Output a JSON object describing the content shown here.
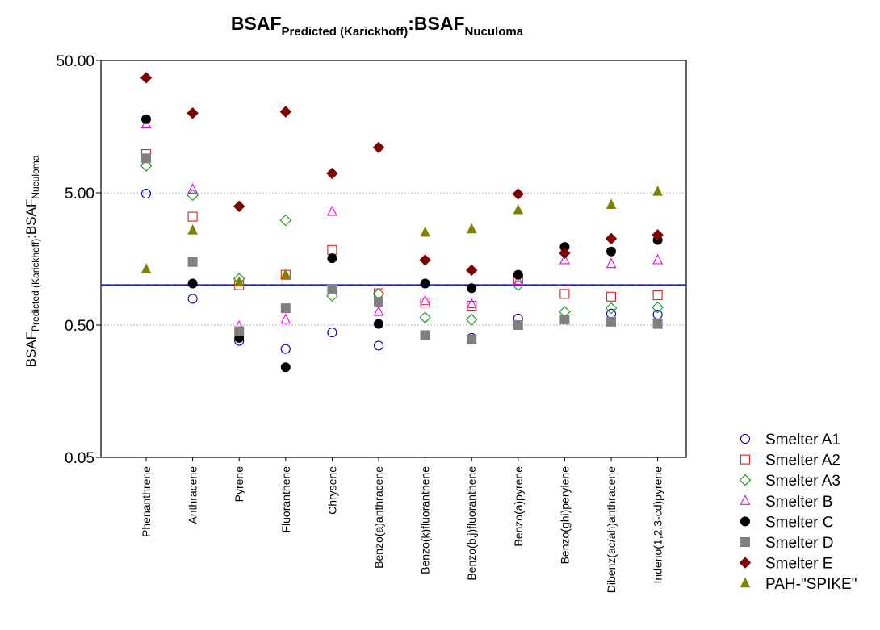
{
  "chart_data": {
    "type": "scatter",
    "title": {
      "main1": "BSAF",
      "sub1": "Predicted (Karickhoff)",
      "colon": ":",
      "main2": "BSAF",
      "sub2": "Nuculoma"
    },
    "ylabel": {
      "main1": "BSAF",
      "sub1": "Predicted (Karickhoff)",
      "colon": ":",
      "main2": "BSAF",
      "sub2": "Nuculoma"
    },
    "yscale": "log",
    "ylim": [
      0.05,
      50
    ],
    "yticks": [
      {
        "value": 50,
        "label": "50.00"
      },
      {
        "value": 5,
        "label": "5.00"
      },
      {
        "value": 0.5,
        "label": "0.50"
      },
      {
        "value": 0.05,
        "label": "0.05"
      }
    ],
    "reference_line": 1.0,
    "grid": "horizontal dotted at 5.00 and 0.50",
    "legend_position": "bottom-right, outside plot",
    "categories": [
      "Phenanthrene",
      "Anthracene",
      "Pyrene",
      "Fluoranthene",
      "Chrysene",
      "Benzo(a)anthracene",
      "Benzo(k)fluoranthene",
      "Benzo(b,j)fluoranthene",
      "Benzo(a)pyrene",
      "Benzo(ghi)perylene",
      "Dibenz(ac/ah)anthracene",
      "Indeno(1,2,3-cd)pyrene"
    ],
    "series": [
      {
        "name": "Smelter A1",
        "marker": "circle-open",
        "color": "#0000cc",
        "values": [
          4.93,
          0.79,
          0.38,
          0.33,
          0.44,
          0.35,
          0.42,
          0.4,
          0.56,
          null,
          0.61,
          0.6
        ]
      },
      {
        "name": "Smelter A2",
        "marker": "square-open",
        "color": "#e02020",
        "values": [
          9.8,
          3.3,
          1.0,
          1.2,
          1.85,
          0.87,
          0.74,
          0.7,
          1.1,
          0.86,
          0.82,
          0.84
        ]
      },
      {
        "name": "Smelter A3",
        "marker": "diamond-open",
        "color": "#119911",
        "values": [
          8.0,
          4.8,
          1.12,
          3.1,
          0.83,
          0.86,
          0.57,
          0.55,
          1.0,
          0.63,
          0.67,
          0.68
        ]
      },
      {
        "name": "Smelter B",
        "marker": "triangle-open",
        "color": "#ee00ee",
        "values": [
          16.5,
          5.3,
          0.49,
          0.55,
          3.6,
          0.63,
          0.76,
          0.72,
          1.08,
          1.55,
          1.45,
          1.55
        ]
      },
      {
        "name": "Smelter C",
        "marker": "circle-filled",
        "color": "#000000",
        "values": [
          18.0,
          1.03,
          0.4,
          0.24,
          1.6,
          0.51,
          1.03,
          0.95,
          1.2,
          1.95,
          1.8,
          2.2
        ]
      },
      {
        "name": "Smelter D",
        "marker": "square-filled",
        "color": "#808080",
        "values": [
          9.1,
          1.5,
          0.45,
          0.67,
          0.93,
          0.75,
          0.42,
          0.39,
          0.5,
          0.55,
          0.53,
          0.51
        ]
      },
      {
        "name": "Smelter E",
        "marker": "diamond-filled",
        "color": "#800000",
        "values": [
          37.0,
          20.0,
          3.95,
          20.5,
          7.0,
          11.0,
          1.55,
          1.3,
          4.9,
          1.75,
          2.25,
          2.4
        ]
      },
      {
        "name": "PAH-\"SPIKE\"",
        "marker": "triangle-filled",
        "color": "#808000",
        "values": [
          1.32,
          2.6,
          1.05,
          1.2,
          null,
          null,
          2.5,
          2.65,
          3.7,
          null,
          4.05,
          5.1
        ]
      }
    ]
  }
}
